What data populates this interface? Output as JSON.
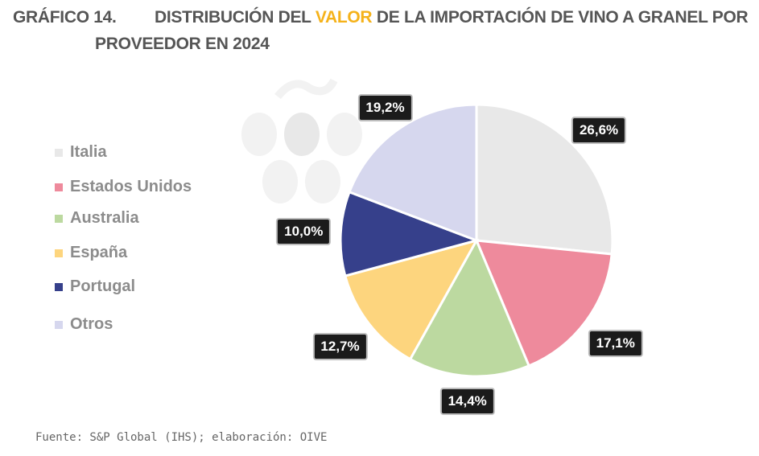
{
  "title": {
    "prefix": "GRÁFICO 14.",
    "part1": "DISTRIBUCIÓN DEL ",
    "highlight": "VALOR",
    "part2": " DE LA IMPORTACIÓN DE VINO A GRANEL POR",
    "line2": "PROVEEDOR EN 2024"
  },
  "chart_data": {
    "type": "pie",
    "title": "DISTRIBUCIÓN DEL VALOR DE LA IMPORTACIÓN DE VINO A GRANEL POR PROVEEDOR EN 2024",
    "categories": [
      "Italia",
      "Estados Unidos",
      "Australia",
      "España",
      "Portugal",
      "Otros"
    ],
    "values": [
      26.6,
      17.1,
      14.4,
      12.7,
      10.0,
      19.2
    ],
    "labels": [
      "26,6%",
      "17,1%",
      "14,4%",
      "12,7%",
      "10,0%",
      "19,2%"
    ],
    "colors": [
      "#e8e8e8",
      "#ee8a9c",
      "#bcd9a0",
      "#fdd57e",
      "#36408b",
      "#d6d7ee"
    ],
    "legend_position": "left"
  },
  "source": "Fuente: S&P Global (IHS); elaboración: OIVE"
}
